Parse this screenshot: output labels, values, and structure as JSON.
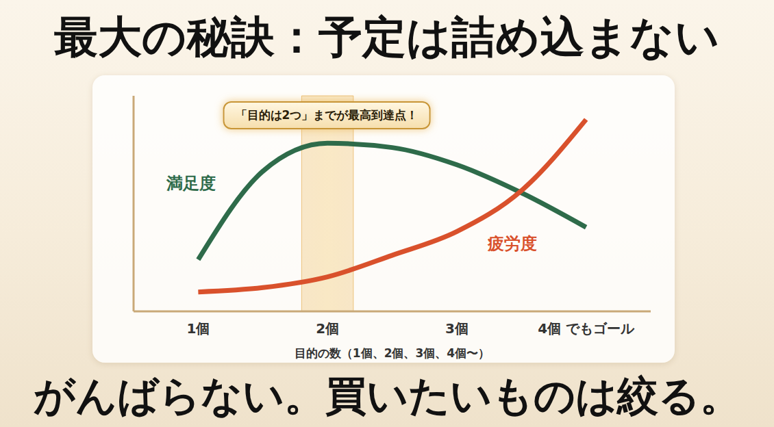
{
  "title": "最大の秘訣：予定は詰め込まない",
  "footer": "がんばらない。買いたいものは絞る。",
  "chart_data": {
    "type": "line",
    "x": [
      1,
      1.5,
      2,
      2.5,
      3,
      3.5,
      4
    ],
    "series": [
      {
        "name": "満足度",
        "color": "#2e6b4a",
        "values": [
          24,
          65,
          78,
          76,
          68,
          55,
          39
        ]
      },
      {
        "name": "疲労度",
        "color": "#d9512c",
        "values": [
          9,
          11,
          16,
          26,
          37,
          56,
          89
        ]
      }
    ],
    "xlim": [
      0.5,
      4.5
    ],
    "xticks": [
      {
        "value": 1,
        "label": "1個"
      },
      {
        "value": 2,
        "label": "2個"
      },
      {
        "value": 3,
        "label": "3個"
      },
      {
        "value": 4,
        "label": "4個 でもゴール"
      }
    ],
    "ylim": [
      0,
      100
    ],
    "x_label": "目的の数（1個、2個、3個、4個〜）",
    "tick_labels": "x",
    "grid": false,
    "annotation": {
      "text": "「目的は2つ」までが最高到達点！",
      "x": [
        1.8,
        2.2
      ]
    }
  }
}
